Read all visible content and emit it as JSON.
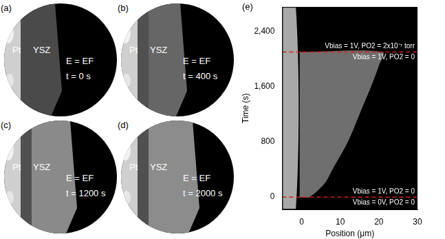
{
  "panels": [
    {
      "label": "(a)",
      "materials": [
        "Pt",
        "YSZ"
      ],
      "condition": "E = EF",
      "time": "t = 0 s"
    },
    {
      "label": "(b)",
      "materials": [
        "Pt",
        "YSZ"
      ],
      "condition": "E = EF",
      "time": "t = 400 s"
    },
    {
      "label": "(c)",
      "materials": [
        "Pt",
        "YSZ"
      ],
      "condition": "E = EF",
      "time": "t = 1200 s"
    },
    {
      "label": "(d)",
      "materials": [
        "Pt",
        "YSZ"
      ],
      "condition": "E = EF",
      "time": "t = 2000 s"
    }
  ],
  "chart_data": {
    "type": "scatter",
    "label": "(e)",
    "x_label": "Position (μm)",
    "y_label": "Time (s)",
    "xlim": [
      -5,
      30
    ],
    "xticks": [
      0,
      10,
      20,
      30
    ],
    "ylim": [
      -180,
      2750
    ],
    "yticks": [
      0,
      800,
      1600,
      2400
    ],
    "grid": false,
    "regions": [
      {
        "color": "#a8a8a8",
        "x": [
          -5,
          -1.5,
          -1.5,
          -5
        ],
        "y": [
          -180,
          -180,
          2750,
          2750
        ]
      },
      {
        "color": "#6f6f6f",
        "x": [
          -0.5,
          2,
          6,
          8,
          12,
          15,
          18,
          20,
          21,
          -0.5
        ],
        "y": [
          0,
          0,
          200,
          400,
          800,
          1200,
          1600,
          1900,
          2100,
          2100
        ]
      }
    ],
    "markers": [
      {
        "y": 0,
        "color": "#d02020",
        "line_style": "dashed",
        "above": "Vbias = 1V, PO2 = 0",
        "below": "Vbias = 0V, PO2 = 0"
      },
      {
        "y": 2100,
        "color": "#d02020",
        "line_style": "dashed",
        "above": "Vbias = 1V, PO2 = 2x10⁻⁷ torr",
        "below": "Vbias = 1V, PO2 = 0"
      }
    ]
  }
}
